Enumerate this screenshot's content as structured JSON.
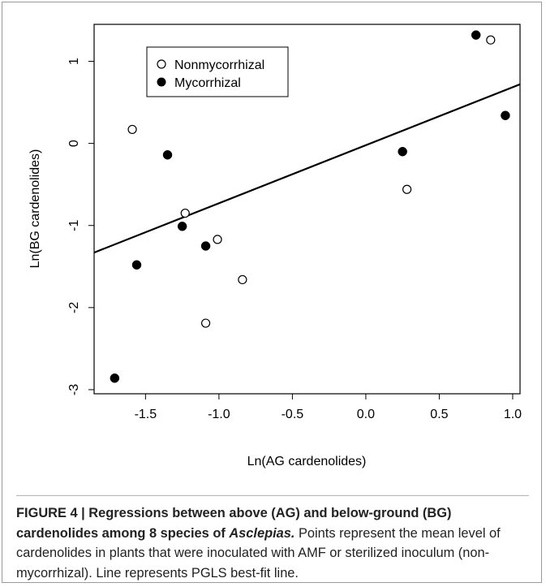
{
  "chart_data": {
    "type": "scatter",
    "xlabel": "Ln(AG cardenolides)",
    "ylabel": "Ln(BG cardenolides)",
    "xlim": [
      -1.85,
      1.05
    ],
    "ylim": [
      -3.05,
      1.45
    ],
    "xticks": [
      "-1.5",
      "-1.0",
      "-0.5",
      "0.0",
      "0.5",
      "1.0"
    ],
    "xtick_values": [
      -1.5,
      -1.0,
      -0.5,
      0.0,
      0.5,
      1.0
    ],
    "yticks": [
      "-3",
      "-2",
      "-1",
      "0",
      "1"
    ],
    "ytick_values": [
      -3,
      -2,
      -1,
      0,
      1
    ],
    "grid": false,
    "legend_position": "top-left",
    "series": [
      {
        "name": "Nonmycorrhizal",
        "marker": "open-circle",
        "points": [
          {
            "x": -1.59,
            "y": 0.17
          },
          {
            "x": -1.23,
            "y": -0.85
          },
          {
            "x": -1.01,
            "y": -1.17
          },
          {
            "x": -1.09,
            "y": -2.19
          },
          {
            "x": -0.84,
            "y": -1.66
          },
          {
            "x": 0.28,
            "y": -0.56
          },
          {
            "x": 0.85,
            "y": 1.26
          }
        ]
      },
      {
        "name": "Mycorrhizal",
        "marker": "filled-circle",
        "points": [
          {
            "x": -1.71,
            "y": -2.86
          },
          {
            "x": -1.56,
            "y": -1.48
          },
          {
            "x": -1.35,
            "y": -0.14
          },
          {
            "x": -1.25,
            "y": -1.01
          },
          {
            "x": -1.09,
            "y": -1.25
          },
          {
            "x": 0.25,
            "y": -0.1
          },
          {
            "x": 0.75,
            "y": 1.32
          },
          {
            "x": 0.95,
            "y": 0.34
          }
        ]
      }
    ],
    "fit_line": {
      "x": [
        -1.85,
        1.05
      ],
      "y": [
        -1.33,
        0.72
      ]
    }
  },
  "caption": {
    "label": "FIGURE 4 | Regressions between above (AG) and below-ground (BG) cardenolides among 8 species of ",
    "genus": "Asclepias.",
    "text": " Points represent the mean level of cardenolides in plants that were inoculated with AMF or sterilized inoculum (non-mycorrhizal). Line represents PGLS best-fit line."
  },
  "colors": {
    "ink": "#000000",
    "frame": "#9a9a9a",
    "caption_text": "#222222"
  }
}
